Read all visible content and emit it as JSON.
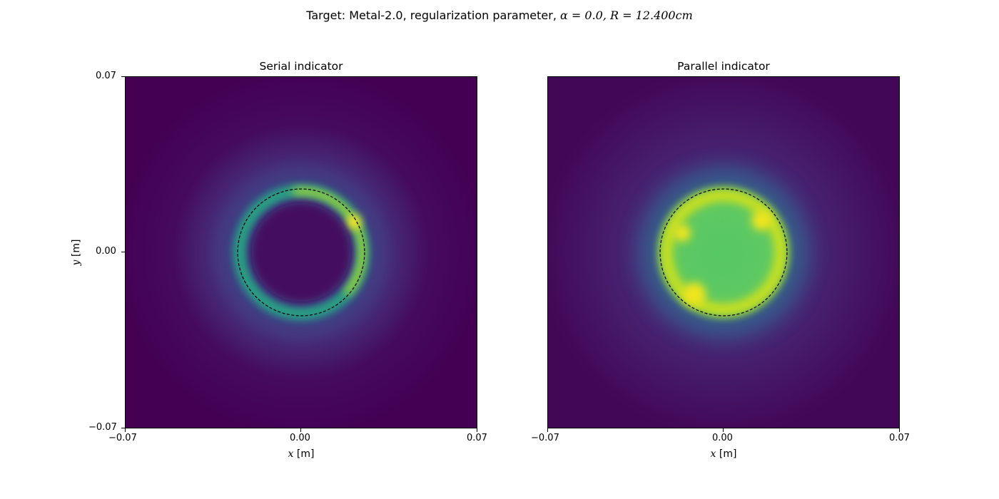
{
  "figure": {
    "suptitle_prefix": "Target: Metal-2.0, regularization parameter, ",
    "suptitle_math": "α = 0.0, R = 12.400cm"
  },
  "chart_data": [
    {
      "type": "heatmap",
      "title": "Serial indicator",
      "xlabel_var": "x",
      "xlabel_unit": " [m]",
      "ylabel_var": "y",
      "ylabel_unit": " [m]",
      "xlim": [
        -0.07,
        0.07
      ],
      "ylim": [
        -0.07,
        0.07
      ],
      "x_ticks": [
        "−0.07",
        "0.00",
        "0.07"
      ],
      "y_ticks": [
        "−0.07",
        "0.00",
        "0.07"
      ],
      "colormap": "viridis",
      "pattern": "ring",
      "ring_radius": 0.0248,
      "ring_peak_angle_deg": 30,
      "target_circle": {
        "cx": 0.0,
        "cy": 0.0,
        "r": 0.0252,
        "style": "dashed"
      }
    },
    {
      "type": "heatmap",
      "title": "Parallel indicator",
      "xlabel_var": "x",
      "xlabel_unit": " [m]",
      "xlim": [
        -0.07,
        0.07
      ],
      "ylim": [
        -0.07,
        0.07
      ],
      "x_ticks": [
        "−0.07",
        "0.00",
        "0.07"
      ],
      "colormap": "viridis",
      "pattern": "filled-disk",
      "target_circle": {
        "cx": 0.0,
        "cy": 0.0,
        "r": 0.0252,
        "style": "dashed"
      }
    }
  ],
  "colors": {
    "viridis_low": "#440154",
    "viridis_mid": "#21918c",
    "viridis_high": "#fde725"
  }
}
